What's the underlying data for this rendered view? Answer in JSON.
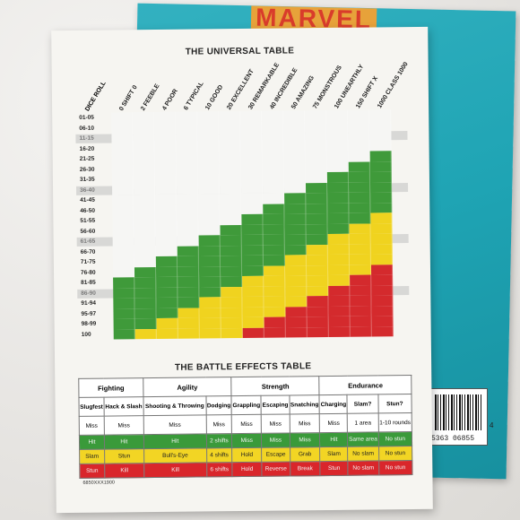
{
  "photo": {
    "book_logo_fragment": "MARVEL",
    "barcode_number": "5363 06855",
    "barcode_suffix": "4"
  },
  "universal_table": {
    "title": "THE UNIVERSAL TABLE",
    "dice_roll_label": "DICE ROLL",
    "columns": [
      "0 SHIFT 0",
      "2 FEEBLE",
      "4 POOR",
      "6 TYPICAL",
      "10 GOOD",
      "20 EXCELLENT",
      "30 REMARKABLE",
      "40 INCREDIBLE",
      "50 AMAZING",
      "75 MONSTROUS",
      "100 UNEARTHLY",
      "150 SHIFT X",
      "1000 CLASS 1000"
    ],
    "rows": [
      "01-05",
      "06-10",
      "11-15",
      "16-20",
      "21-25",
      "26-30",
      "31-35",
      "36-40",
      "41-45",
      "46-50",
      "51-55",
      "56-60",
      "61-65",
      "66-70",
      "71-75",
      "76-80",
      "81-85",
      "86-90",
      "91-94",
      "95-97",
      "98-99",
      "100"
    ],
    "colors": {
      "white": "#f6f6f4",
      "green": "#3f9a3a",
      "yellow": "#f0d31f",
      "red": "#d42a2d"
    }
  },
  "battle_effects": {
    "title": "THE BATTLE EFFECTS TABLE",
    "groups": [
      "Fighting",
      "Agility",
      "Strength",
      "Endurance"
    ],
    "columns": [
      "Slugfest",
      "Hack & Slash",
      "Shooting & Throwing",
      "Dodging",
      "Grappling",
      "Escaping",
      "Snatching",
      "Charging",
      "Slam?",
      "Stun?"
    ],
    "rows": [
      [
        "Miss",
        "Miss",
        "Miss",
        "Miss",
        "Miss",
        "Miss",
        "Miss",
        "Miss",
        "1 area",
        "1-10 rounds"
      ],
      [
        "Hit",
        "Hit",
        "Hit",
        "2 shifts",
        "Miss",
        "Miss",
        "Miss",
        "Hit",
        "Same area",
        "No stun"
      ],
      [
        "Slam",
        "Stun",
        "Bull's-Eye",
        "4 shifts",
        "Hold",
        "Escape",
        "Grab",
        "Slam",
        "No slam",
        "No stun"
      ],
      [
        "Stun",
        "Kill",
        "Kill",
        "6 shifts",
        "Hold",
        "Reverse",
        "Break",
        "Stun",
        "No slam",
        "No stun"
      ]
    ],
    "catalog_code": "6850XXX1900"
  }
}
